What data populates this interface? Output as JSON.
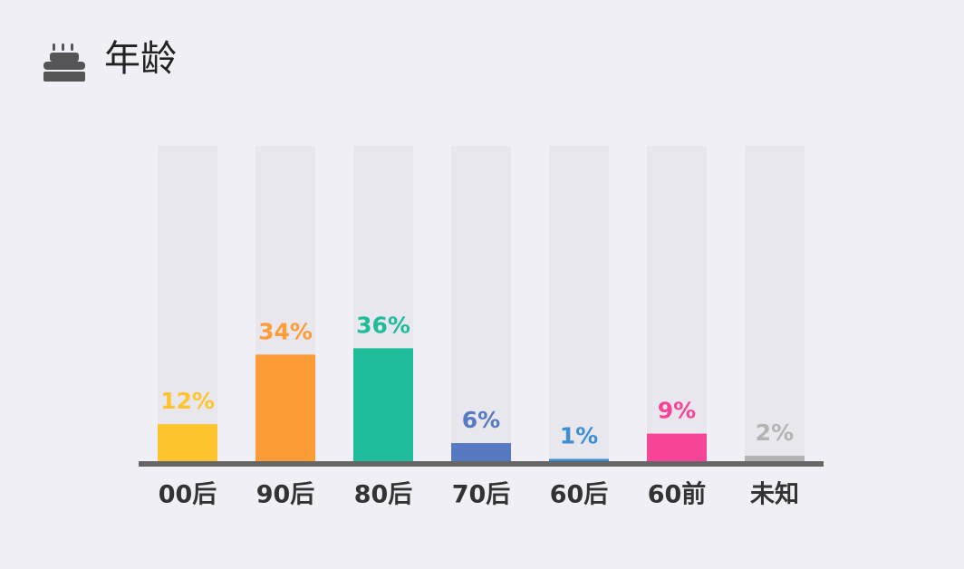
{
  "chart_data": {
    "type": "bar",
    "title": "年龄",
    "categories": [
      "00后",
      "90后",
      "80后",
      "70后",
      "60后",
      "60前",
      "未知"
    ],
    "values": [
      12,
      34,
      36,
      6,
      1,
      9,
      2
    ],
    "value_labels": [
      "12%",
      "34%",
      "36%",
      "6%",
      "1%",
      "9%",
      "2%"
    ],
    "colors": [
      "#fdc42d",
      "#fe9c38",
      "#1fbc9a",
      "#5679c1",
      "#3d8ed2",
      "#f74496",
      "#b3b3b3"
    ],
    "ylim": [
      0,
      100
    ]
  }
}
